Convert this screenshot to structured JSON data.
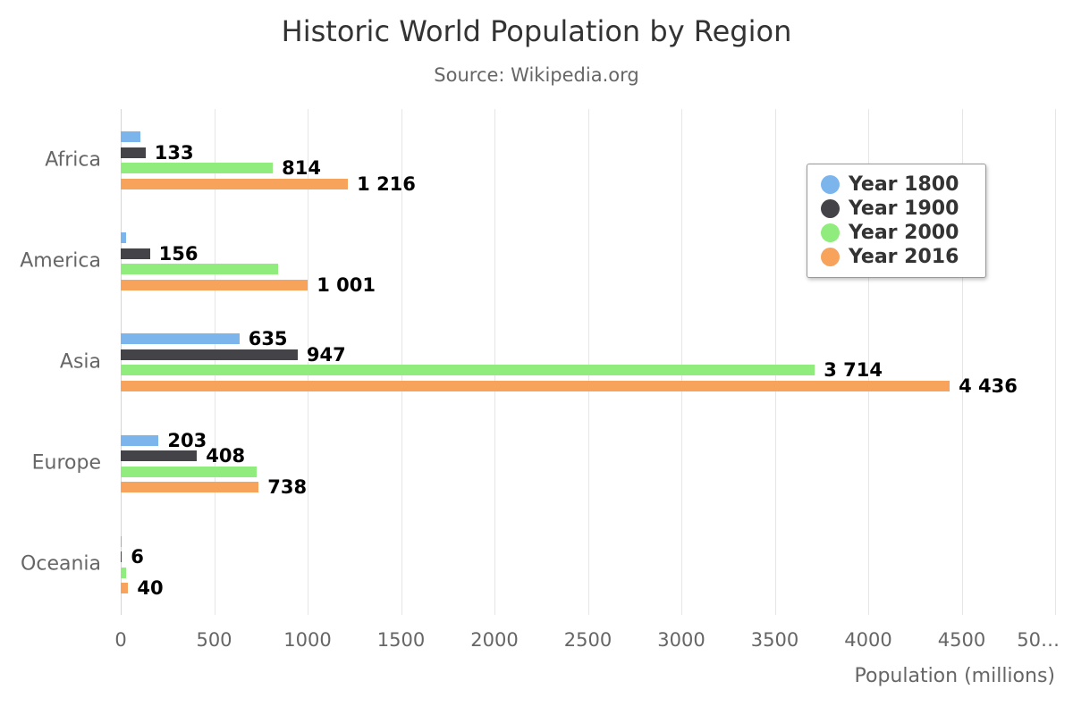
{
  "chart_data": {
    "type": "bar",
    "orientation": "horizontal",
    "title": "Historic World Population by Region",
    "subtitle": "Source: Wikipedia.org",
    "categories": [
      "Africa",
      "America",
      "Asia",
      "Europe",
      "Oceania"
    ],
    "series": [
      {
        "name": "Year 1800",
        "color": "#7cb5ec",
        "values": [
          107,
          31,
          635,
          203,
          2
        ],
        "data_labels": [
          "",
          "",
          "635",
          "203",
          ""
        ]
      },
      {
        "name": "Year 1900",
        "color": "#434348",
        "values": [
          133,
          156,
          947,
          408,
          6
        ],
        "data_labels": [
          "133",
          "156",
          "947",
          "408",
          "6"
        ]
      },
      {
        "name": "Year 2000",
        "color": "#90ed7d",
        "values": [
          814,
          841,
          3714,
          727,
          31
        ],
        "data_labels": [
          "814",
          "",
          "3 714",
          "",
          ""
        ]
      },
      {
        "name": "Year 2016",
        "color": "#f7a35c",
        "values": [
          1216,
          1001,
          4436,
          738,
          40
        ],
        "data_labels": [
          "1 216",
          "1 001",
          "4 436",
          "738",
          "40"
        ]
      }
    ],
    "xlabel": "Population (millions)",
    "ylabel": "",
    "xlim": [
      0,
      5000
    ],
    "x_ticks": [
      0,
      500,
      1000,
      1500,
      2000,
      2500,
      3000,
      3500,
      4000,
      4500,
      5000
    ],
    "x_tick_labels": [
      "0",
      "500",
      "1000",
      "1500",
      "2000",
      "2500",
      "3000",
      "3500",
      "4000",
      "4500",
      "50…"
    ],
    "grid": true,
    "legend_position": "top-right"
  },
  "style_colors": {
    "title": "#333333",
    "subtitle": "#666666",
    "axis_text": "#666666",
    "gridline": "#e6e6e6",
    "category_axis_line": "#ccd6eb",
    "data_label": "#000000",
    "legend_border": "#999999",
    "background": "#ffffff"
  }
}
